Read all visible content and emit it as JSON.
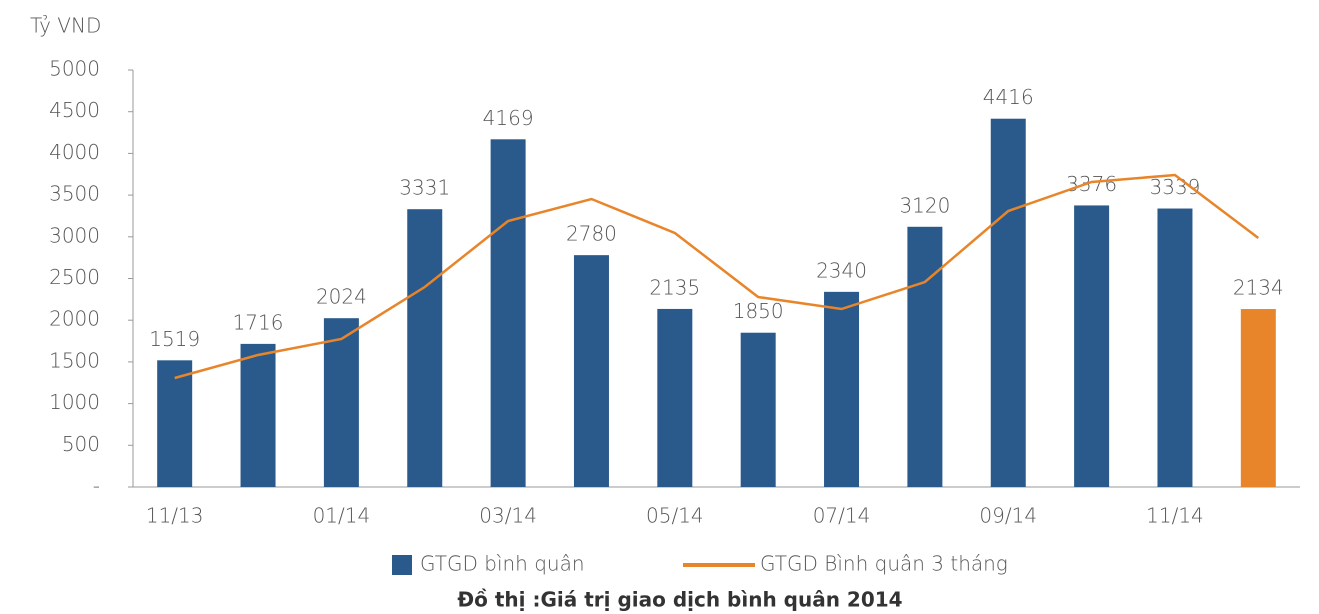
{
  "chart_data": {
    "type": "bar",
    "title": "Đồ thị :Giá trị giao dịch bình quân 2014",
    "y_label": "Tỷ VND",
    "categories": [
      "11/13",
      null,
      "01/14",
      null,
      "03/14",
      null,
      "05/14",
      null,
      "07/14",
      null,
      "09/14",
      null,
      "11/14",
      null
    ],
    "series": [
      {
        "name": "GTGD bình quân",
        "type": "bar",
        "color": "#2a5a8c",
        "colors": [
          "#2a5a8c",
          "#2a5a8c",
          "#2a5a8c",
          "#2a5a8c",
          "#2a5a8c",
          "#2a5a8c",
          "#2a5a8c",
          "#2a5a8c",
          "#2a5a8c",
          "#2a5a8c",
          "#2a5a8c",
          "#2a5a8c",
          "#2a5a8c",
          "#e8852a"
        ],
        "values": [
          1519,
          1716,
          2024,
          3331,
          4169,
          2780,
          2135,
          1850,
          2340,
          3120,
          4416,
          3376,
          3339,
          2134
        ]
      },
      {
        "name": "GTGD Bình quân 3 tháng",
        "type": "line",
        "color": "#e8852a",
        "values": [
          1307,
          1583,
          1775,
          2398,
          3189,
          3453,
          3046,
          2278,
          2134,
          2458,
          3309,
          3657,
          3741,
          2986
        ]
      }
    ],
    "ylim": [
      0,
      5000
    ],
    "yticks": [
      {
        "value": 0,
        "label": "-"
      },
      500,
      1000,
      1500,
      2000,
      2500,
      3000,
      3500,
      4000,
      4500,
      5000
    ],
    "grid": false
  }
}
